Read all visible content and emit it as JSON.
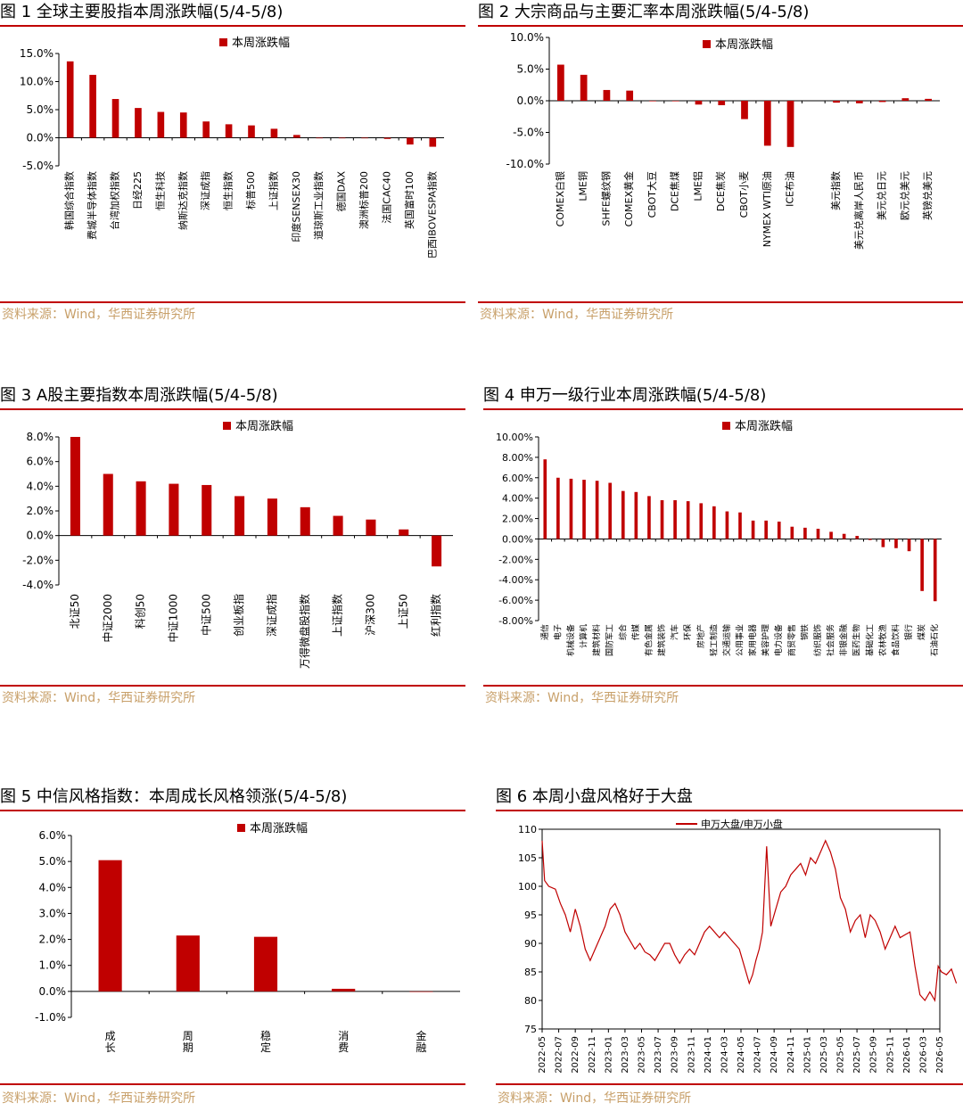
{
  "panels": [
    {
      "title": "图 1  全球主要股指本周涨跌幅(5/4-5/8)",
      "source": "资料来源：Wind，华西证券研究所",
      "chart_data": {
        "type": "bar",
        "legend": "本周涨跌幅",
        "legend_position": "top",
        "categories": [
          "韩国综合指数",
          "费城半导体指数",
          "台湾加权指数",
          "日经225",
          "恒生科技",
          "纳斯达克指数",
          "深证成指",
          "恒生指数",
          "标普500",
          "上证指数",
          "印度SENSEX30",
          "道琼斯工业指数",
          "德国DAX",
          "澳洲标普200",
          "法国CAC40",
          "英国富时100",
          "巴西IBOVESPA指数"
        ],
        "values": [
          13.6,
          11.2,
          6.9,
          5.3,
          4.6,
          4.5,
          2.9,
          2.4,
          2.2,
          1.6,
          0.5,
          -0.1,
          -0.1,
          -0.1,
          -0.2,
          -1.2,
          -1.6
        ],
        "ylim": [
          -5,
          15
        ],
        "yticks": [
          "15.0%",
          "10.0%",
          "5.0%",
          "0.0%",
          "-5.0%"
        ],
        "ytick_values": [
          15,
          10,
          5,
          0,
          -5
        ],
        "color": "#c00000"
      }
    },
    {
      "title": "图 2  大宗商品与主要汇率本周涨跌幅(5/4-5/8)",
      "source": "资料来源：Wind，华西证券研究所",
      "chart_data": {
        "type": "bar",
        "legend": "本周涨跌幅",
        "legend_position": "top",
        "categories": [
          "COMEX白银",
          "LME铜",
          "SHFE螺纹钢",
          "COMEX黄金",
          "CBOT大豆",
          "DCE焦煤",
          "LME铝",
          "DCE焦炭",
          "CBOT小麦",
          "NYMEX WTI原油",
          "ICE布油",
          "",
          "美元指数",
          "美元兑离岸人民币",
          "美元兑日元",
          "欧元兑美元",
          "英镑兑美元"
        ],
        "values": [
          5.7,
          4.1,
          1.7,
          1.6,
          0,
          0,
          -0.6,
          -0.7,
          -2.9,
          -7.1,
          -7.3,
          null,
          -0.3,
          -0.4,
          -0.2,
          0.4,
          0.3
        ],
        "ylim": [
          -10,
          10
        ],
        "yticks": [
          "10.0%",
          "5.0%",
          "0.0%",
          "-5.0%",
          "-10.0%"
        ],
        "ytick_values": [
          10,
          5,
          0,
          -5,
          -10
        ],
        "color": "#c00000"
      }
    },
    {
      "title": "图 3  A股主要指数本周涨跌幅(5/4-5/8)",
      "source": "资料来源：Wind，华西证券研究所",
      "chart_data": {
        "type": "bar",
        "legend": "本周涨跌幅",
        "legend_position": "top",
        "categories": [
          "北证50",
          "中证2000",
          "科创50",
          "中证1000",
          "中证500",
          "创业板指",
          "深证成指",
          "万得微盘股指数",
          "上证指数",
          "沪深300",
          "上证50",
          "红利指数"
        ],
        "values": [
          8.0,
          5.0,
          4.4,
          4.2,
          4.1,
          3.2,
          3.0,
          2.3,
          1.6,
          1.3,
          0.5,
          -2.5
        ],
        "ylim": [
          -4,
          8
        ],
        "yticks": [
          "8.0%",
          "6.0%",
          "4.0%",
          "2.0%",
          "0.0%",
          "-2.0%",
          "-4.0%"
        ],
        "ytick_values": [
          8,
          6,
          4,
          2,
          0,
          -2,
          -4
        ],
        "color": "#c00000"
      }
    },
    {
      "title": "图 4  申万一级行业本周涨跌幅(5/4-5/8)",
      "source": "资料来源：Wind，华西证券研究所",
      "chart_data": {
        "type": "bar",
        "legend": "本周涨跌幅",
        "legend_position": "top",
        "categories": [
          "通信",
          "电子",
          "机械设备",
          "计算机",
          "建筑材料",
          "国防军工",
          "综合",
          "传媒",
          "有色金属",
          "建筑装饰",
          "汽车",
          "环保",
          "房地产",
          "轻工制造",
          "交通运输",
          "公用事业",
          "家用电器",
          "美容护理",
          "电力设备",
          "商贸零售",
          "钢铁",
          "纺织服饰",
          "社会服务",
          "非银金融",
          "医药生物",
          "基础化工",
          "农林牧渔",
          "食品饮料",
          "银行",
          "煤炭",
          "石油石化"
        ],
        "values": [
          7.8,
          6.0,
          5.9,
          5.8,
          5.7,
          5.5,
          4.7,
          4.6,
          4.2,
          3.8,
          3.8,
          3.7,
          3.5,
          3.2,
          2.7,
          2.6,
          1.8,
          1.8,
          1.7,
          1.2,
          1.1,
          1.0,
          0.7,
          0.5,
          0.3,
          -0.1,
          -0.8,
          -0.9,
          -1.2,
          -5.1,
          -6.1
        ],
        "ylim": [
          -8,
          10
        ],
        "yticks": [
          "10.00%",
          "8.00%",
          "6.00%",
          "4.00%",
          "2.00%",
          "0.00%",
          "-2.00%",
          "-4.00%",
          "-6.00%",
          "-8.00%"
        ],
        "ytick_values": [
          10,
          8,
          6,
          4,
          2,
          0,
          -2,
          -4,
          -6,
          -8
        ],
        "color": "#c00000"
      }
    },
    {
      "title": "图 5  中信风格指数：本周成长风格领涨(5/4-5/8)",
      "source": "资料来源：Wind，华西证券研究所",
      "chart_data": {
        "type": "bar",
        "legend": "本周涨跌幅",
        "legend_position": "top",
        "categories": [
          "成长",
          "周期",
          "稳定",
          "消费",
          "金融"
        ],
        "values": [
          5.05,
          2.15,
          2.1,
          0.1,
          0
        ],
        "ylim": [
          -1,
          6
        ],
        "yticks": [
          "6.0%",
          "5.0%",
          "4.0%",
          "3.0%",
          "2.0%",
          "1.0%",
          "0.0%",
          "-1.0%"
        ],
        "ytick_values": [
          6,
          5,
          4,
          3,
          2,
          1,
          0,
          -1
        ],
        "color": "#c00000"
      }
    },
    {
      "title": "图 6  本周小盘风格好于大盘",
      "source": "资料来源：Wind，华西证券研究所",
      "chart_data": {
        "type": "line",
        "legend": "申万大盘/申万小盘",
        "legend_position": "top",
        "x": [
          "2022-05",
          "2022-07",
          "2022-09",
          "2022-11",
          "2023-01",
          "2023-03",
          "2023-05",
          "2023-07",
          "2023-09",
          "2023-11",
          "2024-01",
          "2024-03",
          "2024-05",
          "2024-07",
          "2024-09",
          "2024-11",
          "2025-01",
          "2025-03",
          "2025-05",
          "2025-07",
          "2025-09",
          "2025-11",
          "2026-01",
          "2026-03",
          "2026-05"
        ],
        "x_start": "2022-05",
        "x_end": "2026-05",
        "series": [
          {
            "values": [
              [
                0,
                108
              ],
              [
                0.15,
                101
              ],
              [
                0.4,
                100
              ],
              [
                0.8,
                99.5
              ],
              [
                1.1,
                97
              ],
              [
                1.4,
                95
              ],
              [
                1.7,
                92
              ],
              [
                2.0,
                96
              ],
              [
                2.3,
                93
              ],
              [
                2.6,
                89
              ],
              [
                2.9,
                87
              ],
              [
                3.2,
                89
              ],
              [
                3.5,
                91
              ],
              [
                3.8,
                93
              ],
              [
                4.1,
                96
              ],
              [
                4.4,
                97
              ],
              [
                4.7,
                95
              ],
              [
                5.0,
                92
              ],
              [
                5.3,
                90.5
              ],
              [
                5.6,
                89
              ],
              [
                5.9,
                90
              ],
              [
                6.2,
                88.5
              ],
              [
                6.5,
                88
              ],
              [
                6.8,
                87
              ],
              [
                7.1,
                88.5
              ],
              [
                7.4,
                90
              ],
              [
                7.7,
                90
              ],
              [
                8.0,
                88
              ],
              [
                8.3,
                86.5
              ],
              [
                8.6,
                88
              ],
              [
                8.9,
                89
              ],
              [
                9.2,
                88
              ],
              [
                9.5,
                90
              ],
              [
                9.8,
                92
              ],
              [
                10.1,
                93
              ],
              [
                10.4,
                92
              ],
              [
                10.7,
                91
              ],
              [
                11.0,
                92
              ],
              [
                11.3,
                91
              ],
              [
                11.6,
                90
              ],
              [
                11.9,
                89
              ],
              [
                12.2,
                86
              ],
              [
                12.5,
                83
              ],
              [
                12.7,
                84.5
              ],
              [
                12.9,
                87
              ],
              [
                13.1,
                89
              ],
              [
                13.3,
                92
              ],
              [
                13.55,
                107
              ],
              [
                13.8,
                93
              ],
              [
                14.1,
                96
              ],
              [
                14.4,
                99
              ],
              [
                14.7,
                100
              ],
              [
                15.0,
                102
              ],
              [
                15.3,
                103
              ],
              [
                15.6,
                104
              ],
              [
                15.9,
                102
              ],
              [
                16.2,
                105
              ],
              [
                16.5,
                104
              ],
              [
                16.8,
                106
              ],
              [
                17.1,
                108
              ],
              [
                17.4,
                106
              ],
              [
                17.7,
                103
              ],
              [
                18.0,
                98
              ],
              [
                18.3,
                96
              ],
              [
                18.6,
                92
              ],
              [
                18.9,
                94
              ],
              [
                19.2,
                95
              ],
              [
                19.5,
                91
              ],
              [
                19.8,
                95
              ],
              [
                20.1,
                94
              ],
              [
                20.4,
                92
              ],
              [
                20.7,
                89
              ],
              [
                21.0,
                91
              ],
              [
                21.3,
                93
              ],
              [
                21.6,
                91
              ],
              [
                21.9,
                91.5
              ],
              [
                22.2,
                92
              ],
              [
                22.5,
                86
              ],
              [
                22.8,
                81
              ],
              [
                23.1,
                80
              ],
              [
                23.4,
                81.5
              ],
              [
                23.7,
                80
              ],
              [
                23.9,
                86
              ],
              [
                24.1,
                85
              ],
              [
                24.4,
                84.5
              ],
              [
                24.7,
                85.5
              ],
              [
                25,
                83
              ]
            ]
          }
        ],
        "ylim": [
          75,
          110
        ],
        "yticks": [
          "110",
          "105",
          "100",
          "95",
          "90",
          "85",
          "80",
          "75"
        ],
        "ytick_values": [
          110,
          105,
          100,
          95,
          90,
          85,
          80,
          75
        ],
        "color": "#c00000"
      }
    }
  ]
}
